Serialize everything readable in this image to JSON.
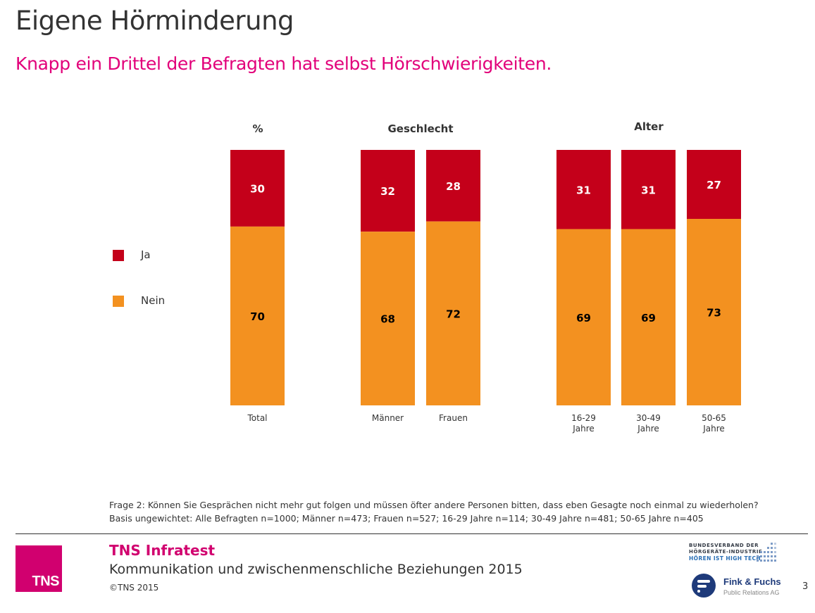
{
  "header": {
    "title": "Eigene Hörminderung",
    "subtitle": "Knapp ein Drittel der Befragten hat selbst Hörschwierigkeiten."
  },
  "chart_data": {
    "type": "bar",
    "stacked": true,
    "normalized": true,
    "unit": "%",
    "groups": [
      {
        "label": "%",
        "categories": [
          "Total"
        ]
      },
      {
        "label": "Geschlecht",
        "categories": [
          "Männer",
          "Frauen"
        ]
      },
      {
        "label": "Alter",
        "categories": [
          "16-29 Jahre",
          "30-49 Jahre",
          "50-65 Jahre"
        ]
      }
    ],
    "categories": [
      "Total",
      "Männer",
      "Frauen",
      "16-29 Jahre",
      "30-49 Jahre",
      "50-65 Jahre"
    ],
    "category_lines": [
      [
        "Total"
      ],
      [
        "Männer"
      ],
      [
        "Frauen"
      ],
      [
        "16-29",
        "Jahre"
      ],
      [
        "30-49",
        "Jahre"
      ],
      [
        "50-65",
        "Jahre"
      ]
    ],
    "series": [
      {
        "name": "Ja",
        "color": "#c4001a",
        "label_color": "#ffffff",
        "values": [
          30,
          32,
          28,
          31,
          31,
          27
        ]
      },
      {
        "name": "Nein",
        "color": "#f39120",
        "label_color": "#000000",
        "values": [
          70,
          68,
          72,
          69,
          69,
          73
        ]
      }
    ],
    "ylim": [
      0,
      100
    ],
    "grid": false,
    "legend": {
      "placement": "left",
      "entries": [
        "Ja",
        "Nein"
      ]
    }
  },
  "footnote": {
    "question": "Frage 2: Können Sie Gesprächen nicht mehr gut folgen und müssen öfter andere Personen bitten, dass eben Gesagte noch einmal zu wiederholen?",
    "base": "Basis ungewichtet: Alle Befragten n=1000; Männer n=473; Frauen n=527; 16-29 Jahre n=114; 30-49 Jahre n=481; 50-65 Jahre n=405"
  },
  "footer": {
    "logo_text": "TNS",
    "brand": "TNS Infratest",
    "study": "Kommunikation und zwischenmenschliche Beziehungen 2015",
    "copyright": "©TNS 2015",
    "partner1_lines": [
      "BUNDESVERBAND DER",
      "HÖRGERÄTE-INDUSTRIE"
    ],
    "partner1_tagline": "HÖREN IST HIGH TECH",
    "partner2_name": "Fink & Fuchs",
    "partner2_sub": "Public Relations AG",
    "page_number": "3"
  },
  "colors": {
    "accent": "#e2007a",
    "tns_brand": "#d1006f",
    "ja": "#c4001a",
    "nein": "#f39120"
  }
}
